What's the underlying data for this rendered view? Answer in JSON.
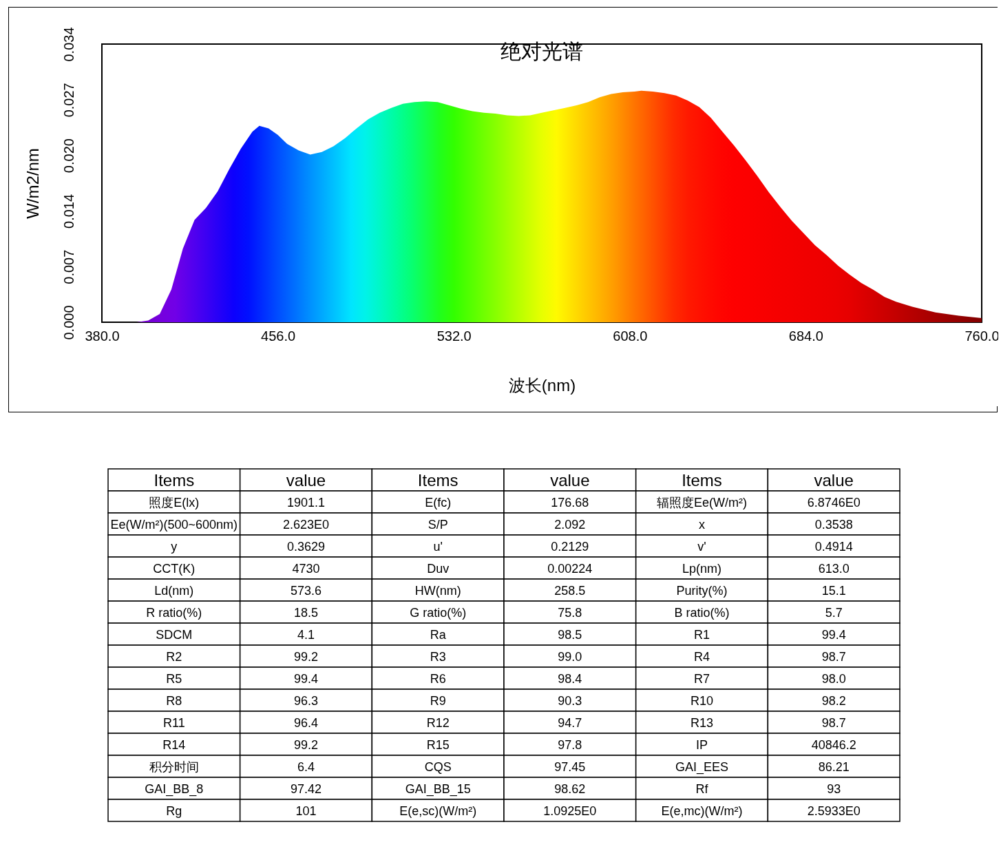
{
  "chart_data": [
    {
      "type": "area",
      "title": "绝对光谱",
      "xlabel": "波长(nm)",
      "ylabel": "W/m2/nm",
      "x": [
        380,
        395,
        400,
        405,
        410,
        415,
        420,
        425,
        430,
        435,
        440,
        445,
        448,
        452,
        456,
        460,
        465,
        470,
        475,
        480,
        485,
        490,
        495,
        500,
        505,
        510,
        515,
        520,
        525,
        530,
        535,
        540,
        545,
        550,
        555,
        560,
        565,
        570,
        575,
        580,
        585,
        590,
        595,
        600,
        605,
        610,
        613,
        618,
        623,
        628,
        633,
        638,
        643,
        648,
        653,
        658,
        663,
        668,
        673,
        678,
        683,
        688,
        693,
        698,
        703,
        708,
        713,
        718,
        723,
        730,
        740,
        750,
        760
      ],
      "values": [
        0,
        0,
        0.0002,
        0.001,
        0.004,
        0.009,
        0.0125,
        0.014,
        0.016,
        0.0187,
        0.0212,
        0.0233,
        0.024,
        0.0237,
        0.0229,
        0.0218,
        0.021,
        0.0205,
        0.0208,
        0.0215,
        0.0225,
        0.0237,
        0.0248,
        0.0256,
        0.0262,
        0.0267,
        0.0269,
        0.027,
        0.0269,
        0.0265,
        0.0261,
        0.0258,
        0.0256,
        0.0255,
        0.0253,
        0.0252,
        0.0253,
        0.0256,
        0.0259,
        0.0262,
        0.0265,
        0.0269,
        0.0275,
        0.0279,
        0.0281,
        0.0282,
        0.0283,
        0.0282,
        0.028,
        0.0277,
        0.0271,
        0.0263,
        0.025,
        0.0233,
        0.0216,
        0.0198,
        0.0179,
        0.0159,
        0.0141,
        0.0124,
        0.0109,
        0.0094,
        0.0082,
        0.0069,
        0.0058,
        0.0048,
        0.004,
        0.0031,
        0.0025,
        0.0019,
        0.0012,
        0.0008,
        0.0005
      ],
      "xlim": [
        380,
        760
      ],
      "ylim": [
        0,
        0.034
      ],
      "xticks": [
        {
          "value": 380,
          "label": "380.0"
        },
        {
          "value": 456,
          "label": "456.0"
        },
        {
          "value": 532,
          "label": "532.0"
        },
        {
          "value": 608,
          "label": "608.0"
        },
        {
          "value": 684,
          "label": "684.0"
        },
        {
          "value": 760,
          "label": "760.0"
        }
      ],
      "yticks": [
        {
          "value": 0,
          "label": "0.000"
        },
        {
          "value": 0.0068,
          "label": "0.007"
        },
        {
          "value": 0.0136,
          "label": "0.014"
        },
        {
          "value": 0.0204,
          "label": "0.020"
        },
        {
          "value": 0.0272,
          "label": "0.027"
        },
        {
          "value": 0.034,
          "label": "0.034"
        }
      ]
    },
    {
      "type": "other",
      "annotations": [
        "Items",
        "value",
        "Items",
        "value",
        "Items",
        "value",
        "照度E(lx)",
        "1901.1",
        "E(fc)",
        "176.68",
        "辐照度Ee(W/m²)",
        "6.8746E0",
        "Ee(W/m²)(500~600nm)",
        "2.623E0",
        "S/P",
        "2.092",
        "x",
        "0.3538",
        "y",
        "0.3629",
        "u'",
        "0.2129",
        "v'",
        "0.4914",
        "CCT(K)",
        "4730",
        "Duv",
        "0.00224",
        "Lp(nm)",
        "613.0",
        "Ld(nm)",
        "573.6",
        "HW(nm)",
        "258.5",
        "Purity(%)",
        "15.1",
        "R ratio(%)",
        "18.5",
        "G ratio(%)",
        "75.8",
        "B ratio(%)",
        "5.7",
        "SDCM",
        "4.1",
        "Ra",
        "98.5",
        "R1",
        "99.4",
        "R2",
        "99.2",
        "R3",
        "99.0",
        "R4",
        "98.7",
        "R5",
        "99.4",
        "R6",
        "98.4",
        "R7",
        "98.0",
        "R8",
        "96.3",
        "R9",
        "90.3",
        "R10",
        "98.2",
        "R11",
        "96.4",
        "R12",
        "94.7",
        "R13",
        "98.7",
        "R14",
        "99.2",
        "R15",
        "97.8",
        "IP",
        "40846.2",
        "积分时间",
        "6.4",
        "CQS",
        "97.45",
        "GAI_EES",
        "86.21",
        "GAI_BB_8",
        "97.42",
        "GAI_BB_15",
        "98.62",
        "Rf",
        "93",
        "Rg",
        "101",
        "E(e,sc)(W/m²)",
        "1.0925E0",
        "E(e,mc)(W/m²)",
        "2.5933E0"
      ]
    }
  ]
}
